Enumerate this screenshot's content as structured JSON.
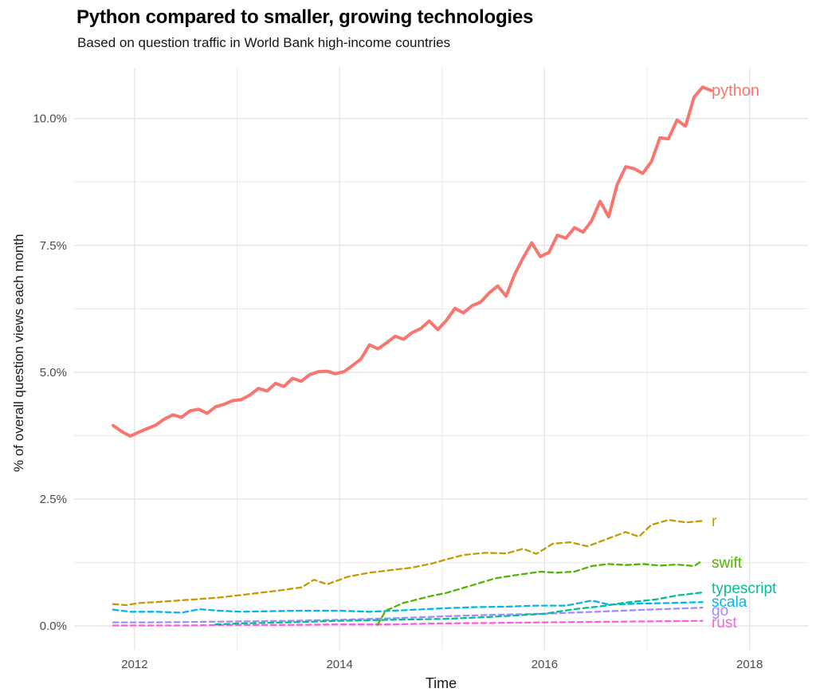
{
  "title": "Python compared to smaller, growing technologies",
  "subtitle": "Based on question traffic in World Bank high-income countries",
  "chart_data": {
    "type": "line",
    "title": "Python compared to smaller, growing technologies",
    "subtitle": "Based on question traffic in World Bank high-income countries",
    "xlabel": "Time",
    "ylabel": "% of overall question views each month",
    "xlim": [
      2011.41,
      2018.57
    ],
    "ylim": [
      -0.47,
      11.0
    ],
    "grid": true,
    "grid_major_color": "#e3e3e3",
    "grid_minor_color": "#ececec",
    "tick_label_color": "#4b4b4b",
    "legend_position": "direct-labels-right",
    "x_ticks_major": {
      "values": [
        2012,
        2014,
        2016,
        2018
      ],
      "labels": [
        "2012",
        "2014",
        "2016",
        "2018"
      ]
    },
    "x_ticks_minor": [
      2013,
      2015,
      2017
    ],
    "y_ticks_major": {
      "values": [
        0,
        2.5,
        5,
        7.5,
        10
      ],
      "labels": [
        "0.0%",
        "2.5%",
        "5.0%",
        "7.5%",
        "10.0%"
      ]
    },
    "y_ticks_minor": [
      1.25,
      3.75,
      6.25,
      8.75
    ],
    "series": [
      {
        "name": "python",
        "color": "#F8766D",
        "style": "solid",
        "width": 4,
        "x": [
          2011.792,
          2011.875,
          2011.958,
          2012.042,
          2012.125,
          2012.208,
          2012.292,
          2012.375,
          2012.458,
          2012.542,
          2012.625,
          2012.708,
          2012.792,
          2012.875,
          2012.958,
          2013.042,
          2013.125,
          2013.208,
          2013.292,
          2013.375,
          2013.458,
          2013.542,
          2013.625,
          2013.708,
          2013.792,
          2013.875,
          2013.958,
          2014.042,
          2014.125,
          2014.208,
          2014.292,
          2014.375,
          2014.458,
          2014.542,
          2014.625,
          2014.708,
          2014.792,
          2014.875,
          2014.958,
          2015.042,
          2015.125,
          2015.208,
          2015.292,
          2015.375,
          2015.458,
          2015.542,
          2015.625,
          2015.708,
          2015.792,
          2015.875,
          2015.958,
          2016.042,
          2016.125,
          2016.208,
          2016.292,
          2016.375,
          2016.458,
          2016.542,
          2016.625,
          2016.708,
          2016.792,
          2016.875,
          2016.958,
          2017.042,
          2017.125,
          2017.208,
          2017.292,
          2017.375,
          2017.458,
          2017.542,
          2017.625
        ],
        "y": [
          3.95,
          3.83,
          3.74,
          3.82,
          3.89,
          3.96,
          4.08,
          4.16,
          4.11,
          4.24,
          4.27,
          4.19,
          4.32,
          4.37,
          4.44,
          4.46,
          4.55,
          4.68,
          4.63,
          4.78,
          4.72,
          4.88,
          4.82,
          4.95,
          5.01,
          5.02,
          4.97,
          5.01,
          5.13,
          5.26,
          5.54,
          5.46,
          5.58,
          5.71,
          5.65,
          5.78,
          5.86,
          6.01,
          5.84,
          6.02,
          6.26,
          6.17,
          6.31,
          6.38,
          6.56,
          6.7,
          6.5,
          6.93,
          7.26,
          7.55,
          7.28,
          7.36,
          7.7,
          7.64,
          7.85,
          7.76,
          7.98,
          8.37,
          8.06,
          8.7,
          9.05,
          9.01,
          8.92,
          9.15,
          9.62,
          9.6,
          9.97,
          9.85,
          10.42,
          10.62,
          10.55
        ]
      },
      {
        "name": "r",
        "color": "#C49A00",
        "style": "dashed",
        "width": 2.3,
        "x": [
          2011.79,
          2011.92,
          2012.04,
          2012.21,
          2012.42,
          2012.63,
          2012.83,
          2013.0,
          2013.21,
          2013.42,
          2013.63,
          2013.75,
          2013.88,
          2014.08,
          2014.29,
          2014.5,
          2014.71,
          2014.92,
          2015.04,
          2015.21,
          2015.42,
          2015.63,
          2015.79,
          2015.92,
          2016.08,
          2016.25,
          2016.42,
          2016.63,
          2016.79,
          2016.92,
          2017.04,
          2017.21,
          2017.38,
          2017.54
        ],
        "y": [
          0.43,
          0.41,
          0.45,
          0.47,
          0.5,
          0.53,
          0.56,
          0.6,
          0.65,
          0.7,
          0.76,
          0.91,
          0.82,
          0.97,
          1.05,
          1.1,
          1.15,
          1.24,
          1.31,
          1.4,
          1.44,
          1.43,
          1.52,
          1.42,
          1.62,
          1.65,
          1.57,
          1.73,
          1.85,
          1.76,
          1.99,
          2.09,
          2.04,
          2.07
        ]
      },
      {
        "name": "swift",
        "color": "#53B400",
        "style": "dashed",
        "width": 2.3,
        "x": [
          2014.37,
          2014.45,
          2014.62,
          2014.87,
          2015.04,
          2015.26,
          2015.52,
          2015.78,
          2015.96,
          2016.12,
          2016.29,
          2016.46,
          2016.62,
          2016.79,
          2016.96,
          2017.12,
          2017.29,
          2017.46,
          2017.54
        ],
        "y": [
          0.02,
          0.3,
          0.45,
          0.58,
          0.65,
          0.78,
          0.94,
          1.02,
          1.07,
          1.05,
          1.07,
          1.18,
          1.22,
          1.2,
          1.22,
          1.19,
          1.21,
          1.18,
          1.29
        ]
      },
      {
        "name": "typescript",
        "color": "#00C094",
        "style": "dashed",
        "width": 2.3,
        "x": [
          2012.79,
          2013.04,
          2013.5,
          2014.0,
          2014.5,
          2015.04,
          2015.5,
          2016.0,
          2016.29,
          2016.56,
          2016.79,
          2017.08,
          2017.29,
          2017.54
        ],
        "y": [
          0.03,
          0.05,
          0.07,
          0.1,
          0.12,
          0.14,
          0.18,
          0.24,
          0.33,
          0.39,
          0.46,
          0.52,
          0.6,
          0.66
        ]
      },
      {
        "name": "scala",
        "color": "#00B6EB",
        "style": "dashed",
        "width": 2.3,
        "x": [
          2011.79,
          2011.96,
          2012.21,
          2012.46,
          2012.63,
          2012.83,
          2013.04,
          2013.33,
          2013.63,
          2014.0,
          2014.29,
          2014.63,
          2015.04,
          2015.33,
          2015.63,
          2015.92,
          2016.21,
          2016.46,
          2016.63,
          2016.92,
          2017.21,
          2017.54
        ],
        "y": [
          0.32,
          0.28,
          0.28,
          0.26,
          0.33,
          0.3,
          0.28,
          0.29,
          0.3,
          0.3,
          0.28,
          0.31,
          0.35,
          0.37,
          0.38,
          0.4,
          0.4,
          0.5,
          0.42,
          0.44,
          0.45,
          0.47
        ]
      },
      {
        "name": "go",
        "color": "#A58AFF",
        "style": "dashed",
        "width": 2.3,
        "x": [
          2011.79,
          2012.21,
          2012.63,
          2013.04,
          2013.5,
          2014.0,
          2014.5,
          2015.04,
          2015.5,
          2016.0,
          2016.5,
          2017.0,
          2017.29,
          2017.54
        ],
        "y": [
          0.07,
          0.07,
          0.08,
          0.09,
          0.1,
          0.12,
          0.15,
          0.19,
          0.22,
          0.24,
          0.28,
          0.32,
          0.34,
          0.36
        ]
      },
      {
        "name": "rust",
        "color": "#FB61D7",
        "style": "dashed",
        "width": 2.3,
        "x": [
          2011.79,
          2012.5,
          2013.0,
          2013.5,
          2014.0,
          2014.5,
          2015.0,
          2015.5,
          2016.0,
          2016.5,
          2017.0,
          2017.54
        ],
        "y": [
          0.01,
          0.01,
          0.02,
          0.02,
          0.03,
          0.03,
          0.05,
          0.06,
          0.07,
          0.08,
          0.09,
          0.1
        ]
      }
    ]
  }
}
